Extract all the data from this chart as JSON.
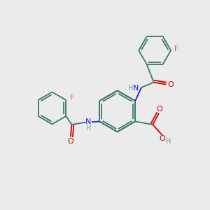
{
  "bg_color": "#ebebeb",
  "bond_color": "#3a7a65",
  "atom_colors": {
    "O": "#cc0000",
    "N": "#1a1aee",
    "F": "#cc44cc",
    "H": "#7a9a8a",
    "C": "#3a7a65"
  },
  "lw": 1.3
}
